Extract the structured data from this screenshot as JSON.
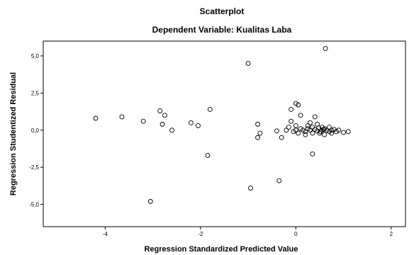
{
  "chart_data": {
    "type": "scatter",
    "title": "Scatterplot",
    "subtitle": "Dependent Variable: Kualitas Laba",
    "xlabel": "Regression Standardized Predicted Value",
    "ylabel": "Regression Studentized Residual",
    "xlim": [
      -5.3,
      2.3
    ],
    "ylim": [
      -6.5,
      6.0
    ],
    "xticks": [
      -4,
      -2,
      0,
      2
    ],
    "xtick_labels": [
      "-4",
      "-2",
      "0",
      "2"
    ],
    "yticks": [
      5.0,
      2.5,
      0.0,
      -2.5,
      -5.0
    ],
    "ytick_labels": [
      "5,0",
      "2,5",
      "0,0",
      "-2,5",
      "-5,0"
    ],
    "marker": "circle-open",
    "grid": false,
    "points": [
      [
        -4.2,
        0.8
      ],
      [
        -3.65,
        0.9
      ],
      [
        -3.2,
        0.6
      ],
      [
        -2.85,
        1.3
      ],
      [
        -2.75,
        1.0
      ],
      [
        -2.8,
        0.4
      ],
      [
        -2.6,
        0.0
      ],
      [
        -2.2,
        0.5
      ],
      [
        -2.05,
        0.3
      ],
      [
        -1.8,
        1.4
      ],
      [
        -1.85,
        -1.7
      ],
      [
        -1.0,
        4.5
      ],
      [
        -0.95,
        -3.9
      ],
      [
        -0.35,
        -3.4
      ],
      [
        -3.05,
        -4.8
      ],
      [
        -0.8,
        0.4
      ],
      [
        -0.75,
        -0.2
      ],
      [
        -0.8,
        -0.5
      ],
      [
        -0.4,
        -0.05
      ],
      [
        -0.3,
        -0.5
      ],
      [
        -0.1,
        1.4
      ],
      [
        0.0,
        1.8
      ],
      [
        0.05,
        1.7
      ],
      [
        0.1,
        1.0
      ],
      [
        -0.1,
        0.6
      ],
      [
        -0.15,
        0.2
      ],
      [
        -0.05,
        -0.1
      ],
      [
        0.0,
        0.0
      ],
      [
        0.05,
        -0.2
      ],
      [
        0.1,
        0.1
      ],
      [
        0.15,
        0.0
      ],
      [
        0.2,
        -0.1
      ],
      [
        0.25,
        0.1
      ],
      [
        0.3,
        0.0
      ],
      [
        0.3,
        0.5
      ],
      [
        0.35,
        0.2
      ],
      [
        0.35,
        -0.2
      ],
      [
        0.4,
        0.9
      ],
      [
        0.4,
        0.05
      ],
      [
        0.45,
        -0.05
      ],
      [
        0.45,
        0.4
      ],
      [
        0.5,
        -0.2
      ],
      [
        0.55,
        0.2
      ],
      [
        0.55,
        0.0
      ],
      [
        0.6,
        0.1
      ],
      [
        0.6,
        -0.3
      ],
      [
        0.65,
        0.0
      ],
      [
        0.7,
        -0.1
      ],
      [
        0.7,
        0.2
      ],
      [
        0.75,
        0.0
      ],
      [
        0.75,
        -0.2
      ],
      [
        0.8,
        0.05
      ],
      [
        0.85,
        -0.1
      ],
      [
        0.9,
        0.0
      ],
      [
        1.0,
        -0.15
      ],
      [
        1.1,
        -0.1
      ],
      [
        0.35,
        -1.6
      ],
      [
        0.62,
        5.5
      ],
      [
        0.2,
        -0.3
      ],
      [
        0.25,
        0.3
      ],
      [
        -0.2,
        0.0
      ],
      [
        0.0,
        0.3
      ],
      [
        0.48,
        0.15
      ],
      [
        0.52,
        -0.1
      ],
      [
        0.58,
        0.05
      ]
    ]
  }
}
